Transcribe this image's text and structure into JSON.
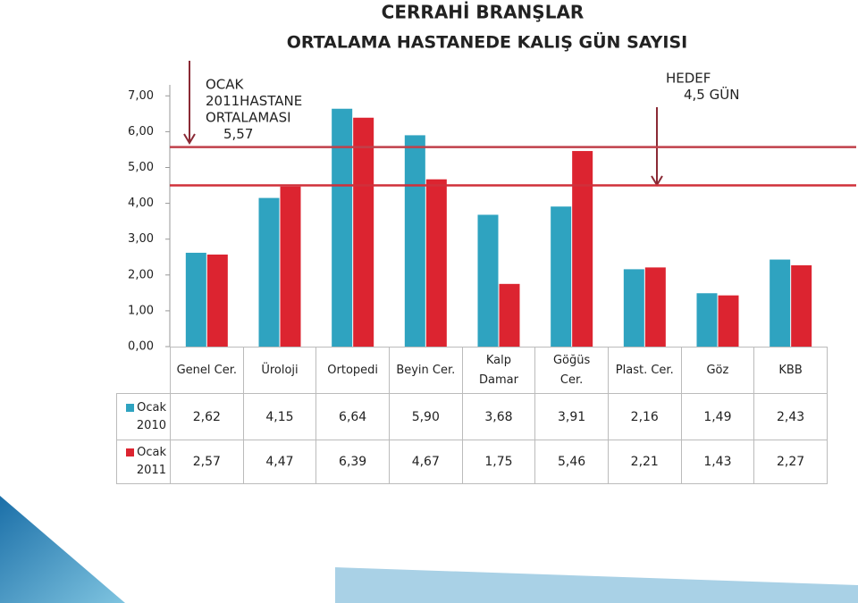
{
  "chart_data": {
    "type": "bar",
    "title": "CERRAHİ BRANŞLAR",
    "subtitle": "ORTALAMA HASTANEDE KALIŞ GÜN SAYISI",
    "categories": [
      "Genel Cer.",
      "Üroloji",
      "Ortopedi",
      "Beyin Cer.",
      "Kalp\nDamar",
      "Göğüs\nCer.",
      "Plast. Cer.",
      "Göz",
      "KBB"
    ],
    "series": [
      {
        "name": "Ocak 2010",
        "color": "#2fa3c0",
        "values": [
          2.62,
          4.15,
          6.64,
          5.9,
          3.68,
          3.91,
          2.16,
          1.49,
          2.43
        ],
        "value_labels": [
          "2,62",
          "4,15",
          "6,64",
          "5,90",
          "3,68",
          "3,91",
          "2,16",
          "1,49",
          "2,43"
        ]
      },
      {
        "name": "Ocak 2011",
        "color": "#dc2430",
        "values": [
          2.57,
          4.47,
          6.39,
          4.67,
          1.75,
          5.46,
          2.21,
          1.43,
          2.27
        ],
        "value_labels": [
          "2,57",
          "4,47",
          "6,39",
          "4,67",
          "1,75",
          "5,46",
          "2,21",
          "1,43",
          "2,27"
        ]
      }
    ],
    "ylim": [
      0,
      7
    ],
    "yticks": [
      {
        "value": 0,
        "label": "0,00"
      },
      {
        "value": 1,
        "label": "1,00"
      },
      {
        "value": 2,
        "label": "2,00"
      },
      {
        "value": 3,
        "label": "3,00"
      },
      {
        "value": 4,
        "label": "4,00"
      },
      {
        "value": 5,
        "label": "5,00"
      },
      {
        "value": 6,
        "label": "6,00"
      },
      {
        "value": 7,
        "label": "7,00"
      }
    ],
    "reference_lines": [
      {
        "value": 5.57,
        "color": "#c0404a",
        "label": [
          "OCAK",
          "2011HASTANE",
          "ORTALAMASI",
          "5,57"
        ]
      },
      {
        "value": 4.5,
        "color": "#d0303a",
        "label": [
          "HEDEF",
          "4,5 GÜN"
        ]
      }
    ]
  }
}
